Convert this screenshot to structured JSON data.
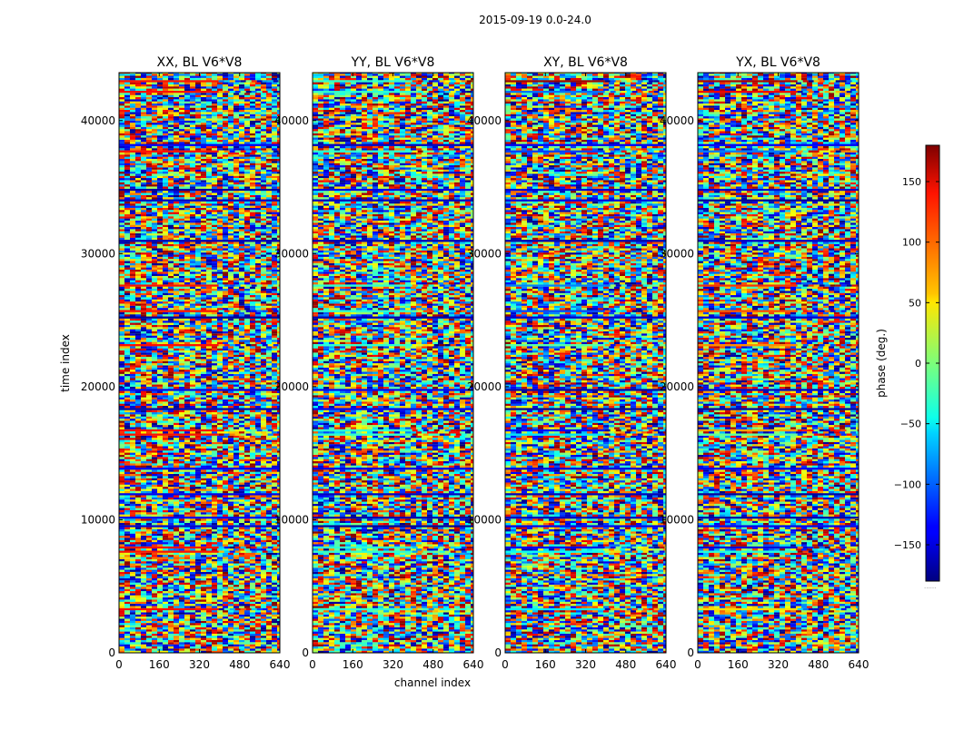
{
  "suptitle": "2015-09-19 0.0-24.0",
  "chart_data": {
    "type": "heatmap",
    "colormap": "jet",
    "panels": [
      {
        "title": "XX, BL V6*V8",
        "polarization": "XX",
        "baseline": "V6*V8"
      },
      {
        "title": "YY, BL V6*V8",
        "polarization": "YY",
        "baseline": "V6*V8"
      },
      {
        "title": "XY, BL V6*V8",
        "polarization": "XY",
        "baseline": "V6*V8"
      },
      {
        "title": "YX, BL V6*V8",
        "polarization": "YX",
        "baseline": "V6*V8"
      }
    ],
    "xlabel": "channel index",
    "ylabel": "time index",
    "xlim": [
      0,
      640
    ],
    "ylim": [
      0,
      43600
    ],
    "xticks": [
      0,
      160,
      320,
      480,
      640
    ],
    "xtick_labels": [
      "0",
      "160",
      "320",
      "480",
      "640"
    ],
    "yticks": [
      0,
      10000,
      20000,
      30000,
      40000
    ],
    "ytick_labels": [
      "0",
      "10000",
      "20000",
      "30000",
      "40000"
    ],
    "colorbar": {
      "label": "phase (deg.)",
      "range": [
        -180,
        180
      ],
      "ticks": [
        150,
        100,
        50,
        0,
        -50,
        -100,
        -150
      ],
      "tick_labels": [
        "150",
        "100",
        "50",
        "0",
        "−50",
        "−100",
        "−150"
      ],
      "footer": "......"
    }
  }
}
